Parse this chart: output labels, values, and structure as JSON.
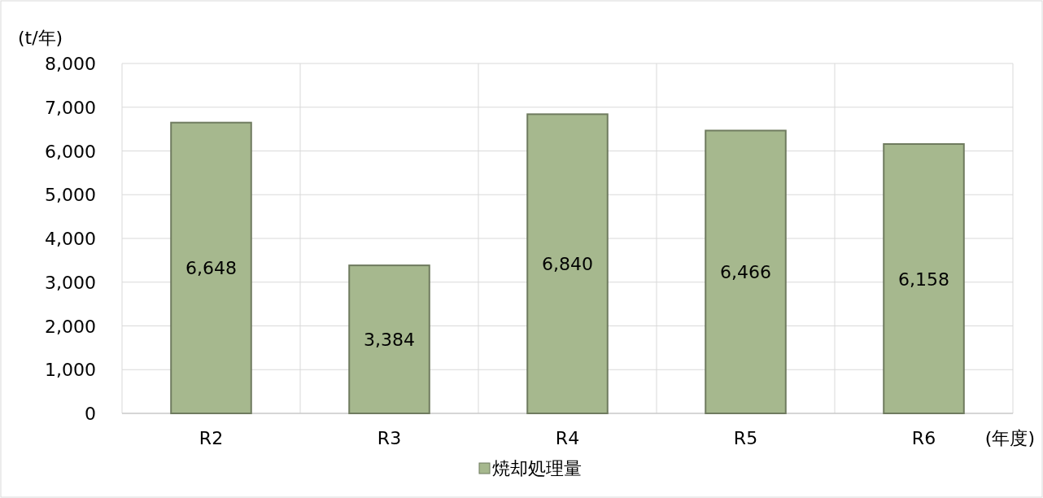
{
  "chart_data": {
    "type": "bar",
    "ylabel": "(t/年)",
    "xlabel": "(年度)",
    "categories": [
      "R2",
      "R3",
      "R4",
      "R5",
      "R6"
    ],
    "series": [
      {
        "name": "焼却処理量",
        "color": "#a6b88e",
        "values": [
          6648,
          3384,
          6840,
          6466,
          6158
        ],
        "value_labels": [
          "6,648",
          "3,384",
          "6,840",
          "6,466",
          "6,158"
        ]
      }
    ],
    "ylim": [
      0,
      8000
    ],
    "yticks": [
      {
        "value": 0,
        "label": "0"
      },
      {
        "value": 1000,
        "label": "1,000"
      },
      {
        "value": 2000,
        "label": "2,000"
      },
      {
        "value": 3000,
        "label": "3,000"
      },
      {
        "value": 4000,
        "label": "4,000"
      },
      {
        "value": 5000,
        "label": "5,000"
      },
      {
        "value": 6000,
        "label": "6,000"
      },
      {
        "value": 7000,
        "label": "7,000"
      },
      {
        "value": 8000,
        "label": "8,000"
      }
    ],
    "grid": true,
    "legend": "bottom"
  }
}
